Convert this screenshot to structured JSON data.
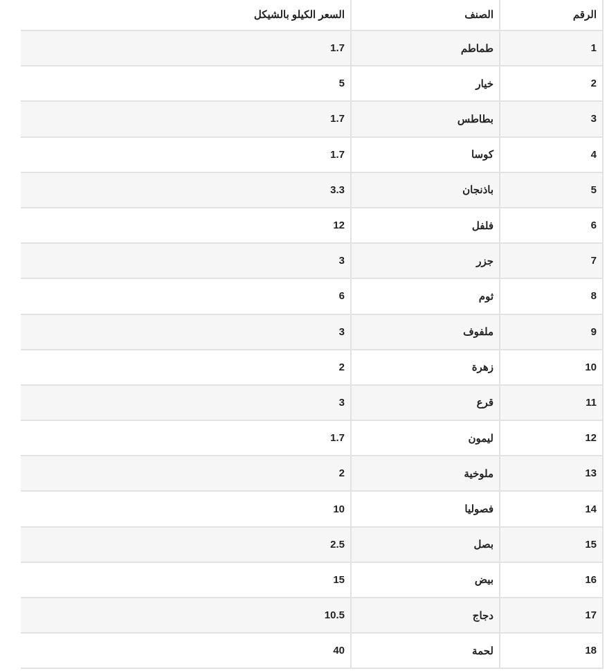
{
  "table": {
    "headers": [
      "الرقم",
      "الصنف",
      "السعر الكيلو بالشيكل"
    ],
    "rows": [
      [
        "1",
        "طماطم",
        "1.7"
      ],
      [
        "2",
        "خيار",
        "5"
      ],
      [
        "3",
        "بطاطس",
        "1.7"
      ],
      [
        "4",
        "كوسا",
        "1.7"
      ],
      [
        "5",
        "باذنجان",
        "3.3"
      ],
      [
        "6",
        "فلفل",
        "12"
      ],
      [
        "7",
        "جزر",
        "3"
      ],
      [
        "8",
        "ثوم",
        "6"
      ],
      [
        "9",
        "ملفوف",
        "3"
      ],
      [
        "10",
        "زهرة",
        "2"
      ],
      [
        "11",
        "قرع",
        "3"
      ],
      [
        "12",
        "ليمون",
        "1.7"
      ],
      [
        "13",
        "ملوخية",
        "2"
      ],
      [
        "14",
        "فصوليا",
        "10"
      ],
      [
        "15",
        "بصل",
        "2.5"
      ],
      [
        "16",
        "بيض",
        "15"
      ],
      [
        "17",
        "دجاج",
        "10.5"
      ],
      [
        "18",
        "لحمة",
        "40"
      ]
    ]
  }
}
